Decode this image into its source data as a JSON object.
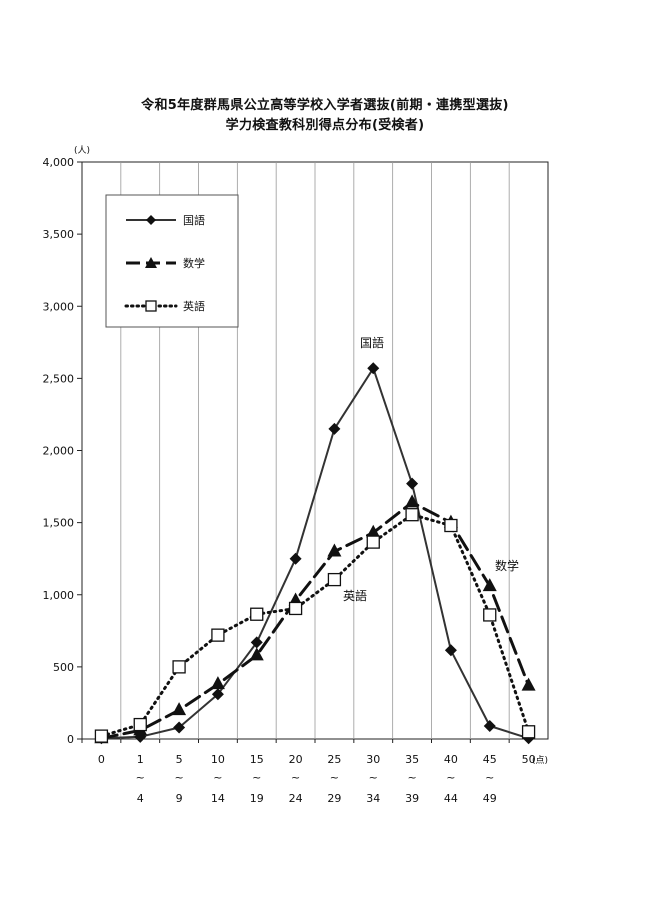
{
  "chart_data": {
    "type": "line",
    "title": "令和5年度群馬県公立高等学校入学者選抜(前期・連携型選抜)",
    "subtitle": "学力検査教科別得点分布(受検者)",
    "y_unit": "(人)",
    "x_unit": "(点)",
    "ylim": [
      0,
      4000
    ],
    "yticks": [
      "0",
      "500",
      "1,000",
      "1,500",
      "2,000",
      "2,500",
      "3,000",
      "3,500",
      "4,000"
    ],
    "categories": [
      {
        "top": "0",
        "wave": "",
        "bottom": ""
      },
      {
        "top": "1",
        "wave": "~",
        "bottom": "4"
      },
      {
        "top": "5",
        "wave": "~",
        "bottom": "9"
      },
      {
        "top": "10",
        "wave": "~",
        "bottom": "14"
      },
      {
        "top": "15",
        "wave": "~",
        "bottom": "19"
      },
      {
        "top": "20",
        "wave": "~",
        "bottom": "24"
      },
      {
        "top": "25",
        "wave": "~",
        "bottom": "29"
      },
      {
        "top": "30",
        "wave": "~",
        "bottom": "34"
      },
      {
        "top": "35",
        "wave": "~",
        "bottom": "39"
      },
      {
        "top": "40",
        "wave": "~",
        "bottom": "44"
      },
      {
        "top": "45",
        "wave": "~",
        "bottom": "49"
      },
      {
        "top": "50",
        "wave": "",
        "bottom": ""
      }
    ],
    "series": [
      {
        "name": "国語",
        "marker": "diamond",
        "dash": "solid",
        "color": "#333333",
        "values": [
          5,
          15,
          80,
          310,
          670,
          1250,
          2150,
          2570,
          1770,
          615,
          90,
          5
        ]
      },
      {
        "name": "数学",
        "marker": "triangle",
        "dash": "long-dash",
        "color": "#111111",
        "values": [
          5,
          60,
          200,
          380,
          580,
          960,
          1300,
          1430,
          1640,
          1500,
          1060,
          370
        ]
      },
      {
        "name": "英語",
        "marker": "square",
        "dash": "dotted",
        "color": "#111111",
        "values": [
          20,
          100,
          500,
          720,
          865,
          905,
          1105,
          1365,
          1555,
          1480,
          860,
          50
        ]
      }
    ],
    "annotations": [
      "国語",
      "数学",
      "英語"
    ],
    "legend": "top-left",
    "grid": "vertical"
  }
}
